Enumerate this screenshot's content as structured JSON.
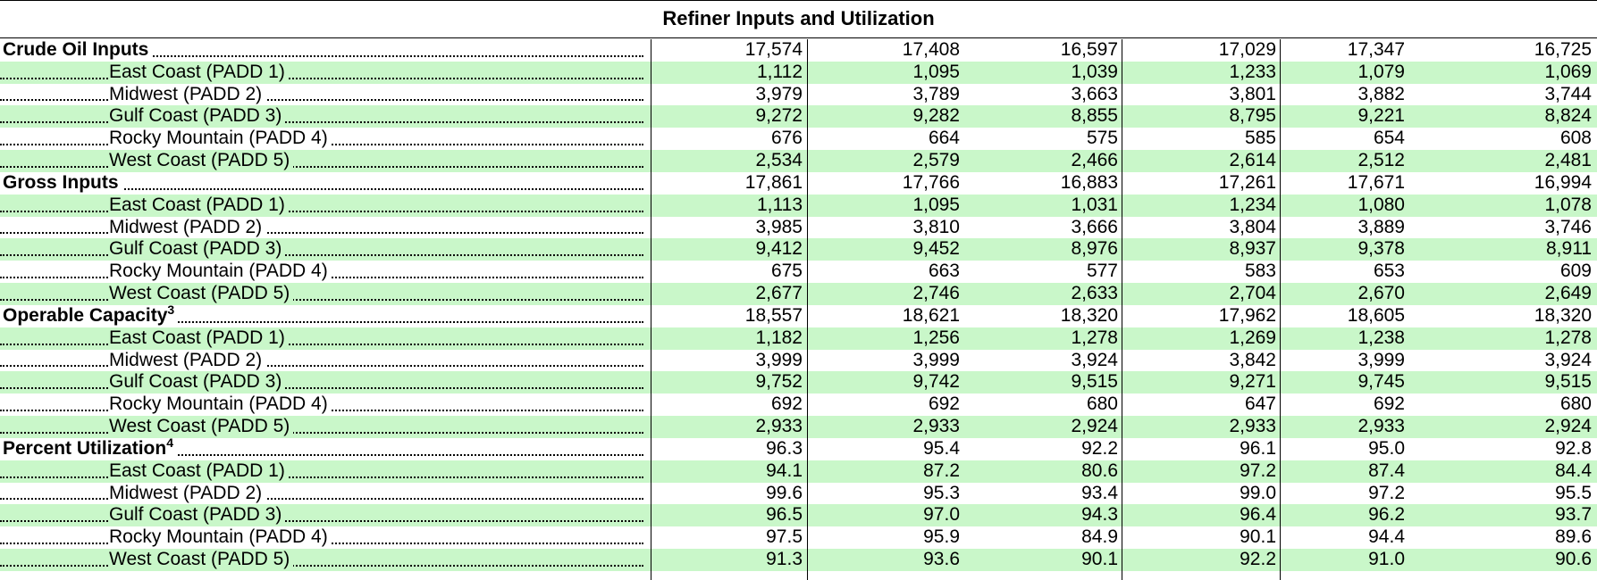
{
  "title": "Refiner Inputs and Utilization",
  "rows": [
    {
      "label": "Crude Oil Inputs",
      "sup": "",
      "type": "header",
      "shaded": false,
      "values": [
        "17,574",
        "17,408",
        "16,597",
        "17,029",
        "17,347",
        "16,725"
      ]
    },
    {
      "label": "East Coast (PADD 1)",
      "sup": "",
      "type": "sub",
      "shaded": true,
      "values": [
        "1,112",
        "1,095",
        "1,039",
        "1,233",
        "1,079",
        "1,069"
      ]
    },
    {
      "label": "Midwest (PADD 2)",
      "sup": "",
      "type": "sub",
      "shaded": false,
      "values": [
        "3,979",
        "3,789",
        "3,663",
        "3,801",
        "3,882",
        "3,744"
      ]
    },
    {
      "label": "Gulf Coast (PADD 3)",
      "sup": "",
      "type": "sub",
      "shaded": true,
      "values": [
        "9,272",
        "9,282",
        "8,855",
        "8,795",
        "9,221",
        "8,824"
      ]
    },
    {
      "label": "Rocky Mountain (PADD 4)",
      "sup": "",
      "type": "sub",
      "shaded": false,
      "values": [
        "676",
        "664",
        "575",
        "585",
        "654",
        "608"
      ]
    },
    {
      "label": "West Coast (PADD 5)",
      "sup": "",
      "type": "sub",
      "shaded": true,
      "values": [
        "2,534",
        "2,579",
        "2,466",
        "2,614",
        "2,512",
        "2,481"
      ]
    },
    {
      "label": "Gross Inputs",
      "sup": "",
      "type": "header",
      "shaded": false,
      "values": [
        "17,861",
        "17,766",
        "16,883",
        "17,261",
        "17,671",
        "16,994"
      ]
    },
    {
      "label": "East Coast (PADD 1)",
      "sup": "",
      "type": "sub",
      "shaded": true,
      "values": [
        "1,113",
        "1,095",
        "1,031",
        "1,234",
        "1,080",
        "1,078"
      ]
    },
    {
      "label": "Midwest (PADD 2)",
      "sup": "",
      "type": "sub",
      "shaded": false,
      "values": [
        "3,985",
        "3,810",
        "3,666",
        "3,804",
        "3,889",
        "3,746"
      ]
    },
    {
      "label": "Gulf Coast (PADD 3)",
      "sup": "",
      "type": "sub",
      "shaded": true,
      "values": [
        "9,412",
        "9,452",
        "8,976",
        "8,937",
        "9,378",
        "8,911"
      ]
    },
    {
      "label": "Rocky Mountain (PADD 4)",
      "sup": "",
      "type": "sub",
      "shaded": false,
      "values": [
        "675",
        "663",
        "577",
        "583",
        "653",
        "609"
      ]
    },
    {
      "label": "West Coast (PADD 5)",
      "sup": "",
      "type": "sub",
      "shaded": true,
      "values": [
        "2,677",
        "2,746",
        "2,633",
        "2,704",
        "2,670",
        "2,649"
      ]
    },
    {
      "label": "Operable Capacity",
      "sup": "3",
      "type": "header",
      "shaded": false,
      "values": [
        "18,557",
        "18,621",
        "18,320",
        "17,962",
        "18,605",
        "18,320"
      ]
    },
    {
      "label": "East Coast (PADD 1)",
      "sup": "",
      "type": "sub",
      "shaded": true,
      "values": [
        "1,182",
        "1,256",
        "1,278",
        "1,269",
        "1,238",
        "1,278"
      ]
    },
    {
      "label": "Midwest (PADD 2)",
      "sup": "",
      "type": "sub",
      "shaded": false,
      "values": [
        "3,999",
        "3,999",
        "3,924",
        "3,842",
        "3,999",
        "3,924"
      ]
    },
    {
      "label": "Gulf Coast (PADD 3)",
      "sup": "",
      "type": "sub",
      "shaded": true,
      "values": [
        "9,752",
        "9,742",
        "9,515",
        "9,271",
        "9,745",
        "9,515"
      ]
    },
    {
      "label": "Rocky Mountain (PADD 4)",
      "sup": "",
      "type": "sub",
      "shaded": false,
      "values": [
        "692",
        "692",
        "680",
        "647",
        "692",
        "680"
      ]
    },
    {
      "label": "West Coast (PADD 5)",
      "sup": "",
      "type": "sub",
      "shaded": true,
      "values": [
        "2,933",
        "2,933",
        "2,924",
        "2,933",
        "2,933",
        "2,924"
      ]
    },
    {
      "label": "Percent Utilization",
      "sup": "4",
      "type": "header",
      "shaded": false,
      "values": [
        "96.3",
        "95.4",
        "92.2",
        "96.1",
        "95.0",
        "92.8"
      ]
    },
    {
      "label": "East Coast (PADD 1)",
      "sup": "",
      "type": "sub",
      "shaded": true,
      "values": [
        "94.1",
        "87.2",
        "80.6",
        "97.2",
        "87.4",
        "84.4"
      ]
    },
    {
      "label": "Midwest (PADD 2)",
      "sup": "",
      "type": "sub",
      "shaded": false,
      "values": [
        "99.6",
        "95.3",
        "93.4",
        "99.0",
        "97.2",
        "95.5"
      ]
    },
    {
      "label": "Gulf Coast (PADD 3)",
      "sup": "",
      "type": "sub",
      "shaded": true,
      "values": [
        "96.5",
        "97.0",
        "94.3",
        "96.4",
        "96.2",
        "93.7"
      ]
    },
    {
      "label": "Rocky Mountain (PADD 4)",
      "sup": "",
      "type": "sub",
      "shaded": false,
      "values": [
        "97.5",
        "95.9",
        "84.9",
        "90.1",
        "94.4",
        "89.6"
      ]
    },
    {
      "label": "West Coast (PADD 5)",
      "sup": "",
      "type": "sub",
      "shaded": true,
      "values": [
        "91.3",
        "93.6",
        "90.1",
        "92.2",
        "91.0",
        "90.6"
      ]
    }
  ]
}
